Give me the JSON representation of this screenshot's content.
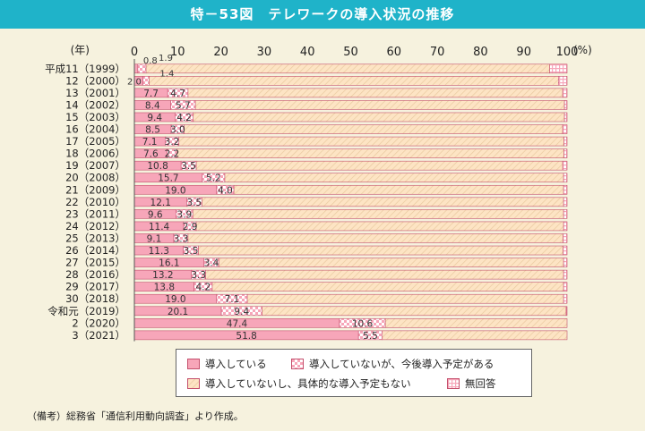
{
  "title": "特－53図　テレワークの導入状況の推移",
  "note": "（備考）総務省「通信利用動向調査」より作成。",
  "legend": {
    "introduced": "導入している",
    "planned": "導入していないが、今後導入予定がある",
    "not_planned": "導入していないし、具体的な導入予定もない",
    "no_answer": "無回答"
  },
  "colors": {
    "introduced": "#f7a6b9",
    "planned_a": "#f7a6b9",
    "planned_b": "#ffffff",
    "not_planned": "#fde4c4",
    "not_planned_stripe": "#e9c9a0",
    "no_answer": "#f7a6b9",
    "border": "#c4506d"
  },
  "chart_data": {
    "type": "bar",
    "orientation": "horizontal",
    "stacked": true,
    "year_unit_label": "(年)",
    "percent_unit_label": "(%)",
    "xlim": [
      0,
      100
    ],
    "x_ticks": [
      "0",
      "10",
      "20",
      "30",
      "40",
      "50",
      "60",
      "70",
      "80",
      "90",
      "100"
    ],
    "categories": [
      "平成11（1999）",
      "12（2000）",
      "13（2001）",
      "14（2002）",
      "15（2003）",
      "16（2004）",
      "17（2005）",
      "18（2006）",
      "19（2007）",
      "20（2008）",
      "21（2009）",
      "22（2010）",
      "23（2011）",
      "24（2012）",
      "25（2013）",
      "26（2014）",
      "27（2015）",
      "28（2016）",
      "29（2017）",
      "30（2018）",
      "令和元（2019）",
      "2（2020）",
      "3（2021）"
    ],
    "series": [
      {
        "name": "導入している",
        "values": [
          0.8,
          2.0,
          7.7,
          8.4,
          9.4,
          8.5,
          7.1,
          7.6,
          10.8,
          15.7,
          19.0,
          12.1,
          9.6,
          11.4,
          9.1,
          11.3,
          16.1,
          13.2,
          13.8,
          19.0,
          20.1,
          47.4,
          51.8
        ]
      },
      {
        "name": "導入していないが、今後導入予定がある",
        "values": [
          1.9,
          1.4,
          4.7,
          5.7,
          4.2,
          3.0,
          3.2,
          2.2,
          3.5,
          5.2,
          4.0,
          3.5,
          3.9,
          2.9,
          3.3,
          3.5,
          3.4,
          3.3,
          4.2,
          7.1,
          9.4,
          10.6,
          5.5
        ]
      },
      {
        "name": "導入していないし、具体的な導入予定もない",
        "values": [
          93.3,
          94.6,
          86.6,
          85.3,
          85.8,
          87.5,
          89.0,
          89.5,
          84.7,
          78.3,
          76.2,
          83.6,
          85.7,
          84.9,
          86.7,
          84.3,
          79.7,
          82.7,
          81.2,
          73.1,
          70.3,
          42.0,
          42.7
        ]
      },
      {
        "name": "無回答",
        "values": [
          4.0,
          2.0,
          1.0,
          0.6,
          0.6,
          1.0,
          0.7,
          0.7,
          1.0,
          0.8,
          0.8,
          0.8,
          0.8,
          0.8,
          0.9,
          0.9,
          0.8,
          0.8,
          0.8,
          0.8,
          0.2,
          0.0,
          0.0
        ]
      }
    ]
  }
}
